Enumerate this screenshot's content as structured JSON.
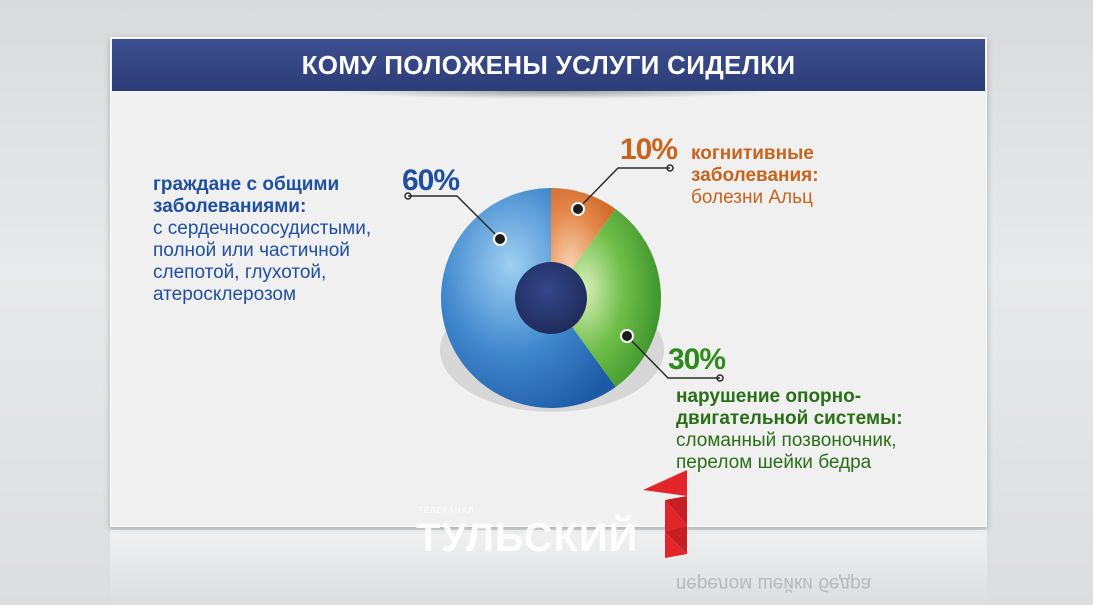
{
  "header": {
    "title": "КОМУ ПОЛОЖЕНЫ УСЛУГИ СИДЕЛКИ"
  },
  "chart_data": {
    "type": "pie",
    "title": "КОМУ ПОЛОЖЕНЫ УСЛУГИ СИДЕЛКИ",
    "slices": [
      {
        "key": "general",
        "percent_label": "60%",
        "value": 60,
        "heading": "граждане с общими заболеваниями:",
        "description": "с сердечнососудистыми, полной или частичной слепотой, глухотой, атеросклерозом",
        "color": "#2f6fb8"
      },
      {
        "key": "cognitive",
        "percent_label": "10%",
        "value": 10,
        "heading": "когнитивные заболевания:",
        "description": "болезни Альц",
        "color": "#e07a3c"
      },
      {
        "key": "musculoskeletal",
        "percent_label": "30%",
        "value": 30,
        "heading": "нарушение опорно-двигательной системы:",
        "description": "сломанный позвоночник, перелом шейки бедра",
        "color": "#3c9a2c"
      }
    ],
    "center_color": "#2a3a70"
  },
  "logo": {
    "small_text": "ТЕЛЕКАНАЛ",
    "name": "ТУЛЬСКИЙ"
  },
  "reflection_text": "перелом шейки бедра"
}
